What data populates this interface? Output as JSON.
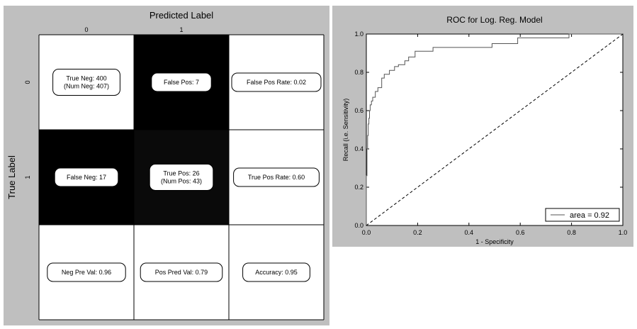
{
  "chart_data": [
    {
      "type": "heatmap",
      "title": "Predicted Label",
      "xlabel": "",
      "ylabel": "True Label",
      "x_ticks": [
        "0",
        "1"
      ],
      "y_ticks": [
        "0",
        "1"
      ],
      "cells": [
        [
          {
            "text": "True Neg: 400\n(Num Neg: 407)",
            "fill": "#ffffff"
          },
          {
            "text": "False Pos: 7",
            "fill": "#000000"
          },
          {
            "text": "False Pos Rate: 0.02",
            "fill": "#ffffff"
          }
        ],
        [
          {
            "text": "False Neg: 17",
            "fill": "#000000"
          },
          {
            "text": "True Pos: 26\n(Num Pos: 43)",
            "fill": "#0a0a0a"
          },
          {
            "text": "True Pos Rate: 0.60",
            "fill": "#ffffff"
          }
        ],
        [
          {
            "text": "Neg Pre Val: 0.96",
            "fill": "#ffffff"
          },
          {
            "text": "Pos Pred Val: 0.79",
            "fill": "#ffffff"
          },
          {
            "text": "Accuracy: 0.95",
            "fill": "#ffffff"
          }
        ]
      ]
    },
    {
      "type": "line",
      "title": "ROC for Log. Reg. Model",
      "xlabel": "1 - Specificity",
      "ylabel": "Recall (i.e. Sensitivity)",
      "xlim": [
        0.0,
        1.0
      ],
      "ylim": [
        0.0,
        1.0
      ],
      "x_ticks": [
        "0.0",
        "0.2",
        "0.4",
        "0.6",
        "0.8",
        "1.0"
      ],
      "y_ticks": [
        "0.0",
        "0.2",
        "0.4",
        "0.6",
        "0.8",
        "1.0"
      ],
      "legend": {
        "position": "bottom-right",
        "entries": [
          "area = 0.92"
        ]
      },
      "series": [
        {
          "name": "area = 0.92",
          "style": "solid",
          "x": [
            0,
            0,
            0.0025,
            0.0025,
            0.005,
            0.005,
            0.0075,
            0.0075,
            0.01,
            0.01,
            0.0125,
            0.0125,
            0.015,
            0.015,
            0.02,
            0.02,
            0.025,
            0.025,
            0.035,
            0.035,
            0.045,
            0.045,
            0.06,
            0.06,
            0.07,
            0.07,
            0.09,
            0.09,
            0.11,
            0.11,
            0.125,
            0.125,
            0.15,
            0.15,
            0.165,
            0.165,
            0.19,
            0.19,
            0.22,
            0.22,
            0.26,
            0.26,
            0.49,
            0.49,
            0.59,
            0.59,
            0.79,
            0.79,
            1.0
          ],
          "y": [
            0,
            0.26,
            0.26,
            0.4,
            0.4,
            0.47,
            0.47,
            0.53,
            0.53,
            0.56,
            0.56,
            0.6,
            0.6,
            0.63,
            0.63,
            0.65,
            0.65,
            0.67,
            0.67,
            0.7,
            0.7,
            0.72,
            0.72,
            0.77,
            0.77,
            0.79,
            0.79,
            0.81,
            0.81,
            0.83,
            0.83,
            0.84,
            0.84,
            0.86,
            0.86,
            0.88,
            0.88,
            0.91,
            0.91,
            0.91,
            0.91,
            0.93,
            0.93,
            0.95,
            0.95,
            0.98,
            0.98,
            1.0,
            1.0
          ]
        },
        {
          "style": "dashed",
          "x": [
            0,
            1
          ],
          "y": [
            0,
            1
          ]
        }
      ]
    }
  ]
}
